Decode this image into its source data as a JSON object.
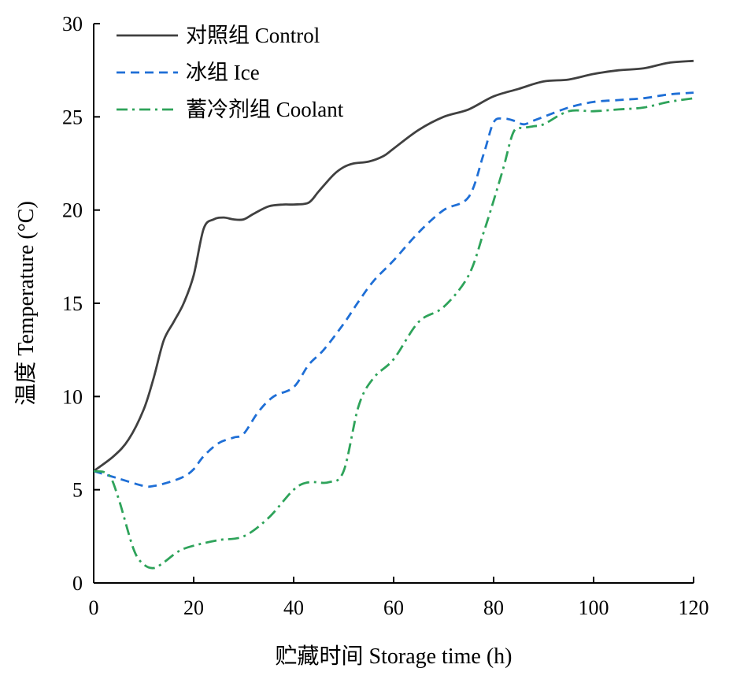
{
  "chart_data": {
    "type": "line",
    "xlabel": "贮藏时间 Storage time (h)",
    "ylabel": "温度 Temperature (°C)",
    "xlim": [
      0,
      120
    ],
    "ylim": [
      0,
      30
    ],
    "xticks": [
      0,
      20,
      40,
      60,
      80,
      100,
      120
    ],
    "yticks": [
      0,
      5,
      10,
      15,
      20,
      25,
      30
    ],
    "grid": false,
    "legend_position": "top-left",
    "series": [
      {
        "name": "对照组 Control",
        "color": "#404040",
        "dash": "solid",
        "x": [
          0,
          4,
          7,
          10,
          12,
          14,
          16,
          18,
          20,
          22,
          24,
          26,
          28,
          30,
          32,
          35,
          38,
          40,
          43,
          45,
          48,
          50,
          52,
          55,
          58,
          60,
          65,
          70,
          75,
          80,
          85,
          90,
          95,
          100,
          105,
          110,
          115,
          120
        ],
        "values": [
          6.0,
          6.8,
          7.7,
          9.3,
          11.0,
          13.0,
          14.0,
          15.0,
          16.5,
          19.0,
          19.5,
          19.6,
          19.5,
          19.5,
          19.8,
          20.2,
          20.3,
          20.3,
          20.4,
          21.0,
          21.9,
          22.3,
          22.5,
          22.6,
          22.9,
          23.3,
          24.3,
          25.0,
          25.4,
          26.1,
          26.5,
          26.9,
          27.0,
          27.3,
          27.5,
          27.6,
          27.9,
          28.0
        ]
      },
      {
        "name": "冰组 Ice",
        "color": "#1f6fd6",
        "dash": "dashed",
        "x": [
          0,
          5,
          10,
          12,
          15,
          18,
          20,
          22,
          25,
          28,
          30,
          33,
          36,
          40,
          43,
          46,
          50,
          53,
          56,
          60,
          65,
          70,
          75,
          78,
          80,
          82,
          84,
          86,
          88,
          90,
          95,
          100,
          105,
          110,
          115,
          120
        ],
        "values": [
          6.0,
          5.6,
          5.2,
          5.2,
          5.4,
          5.7,
          6.1,
          6.8,
          7.5,
          7.8,
          8.0,
          9.2,
          10.0,
          10.5,
          11.7,
          12.5,
          13.9,
          15.1,
          16.2,
          17.3,
          18.8,
          20.0,
          20.7,
          23.0,
          24.7,
          24.9,
          24.8,
          24.6,
          24.8,
          25.0,
          25.5,
          25.8,
          25.9,
          26.0,
          26.2,
          26.3
        ]
      },
      {
        "name": "蓄冷剂组 Coolant",
        "color": "#2ea35a",
        "dash": "dashdot",
        "x": [
          0,
          3,
          5,
          8,
          10,
          12,
          14,
          17,
          20,
          25,
          30,
          35,
          40,
          43,
          47,
          50,
          53,
          56,
          60,
          65,
          70,
          75,
          78,
          80,
          82,
          84,
          86,
          88,
          90,
          95,
          100,
          105,
          110,
          115,
          120
        ],
        "values": [
          6.0,
          5.8,
          4.5,
          1.8,
          1.0,
          0.8,
          1.1,
          1.7,
          2.0,
          2.3,
          2.5,
          3.5,
          5.0,
          5.4,
          5.4,
          6.0,
          9.5,
          11.0,
          12.0,
          14.0,
          14.8,
          16.5,
          18.8,
          20.5,
          22.3,
          24.2,
          24.4,
          24.5,
          24.6,
          25.3,
          25.3,
          25.4,
          25.5,
          25.8,
          26.0
        ]
      }
    ]
  }
}
